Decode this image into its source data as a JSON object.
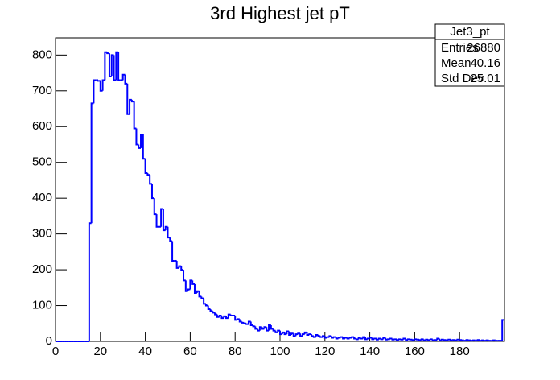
{
  "chart_data": {
    "type": "histogram",
    "title": "3rd Highest jet pT",
    "color": "#0000ff",
    "bins": [
      0,
      1,
      2,
      3,
      4,
      5,
      6,
      7,
      8,
      9,
      10,
      11,
      12,
      13,
      14,
      15,
      16,
      17,
      18,
      19,
      20,
      21,
      22,
      23,
      24,
      25,
      26,
      27,
      28,
      29,
      30,
      31,
      32,
      33,
      34,
      35,
      36,
      37,
      38,
      39,
      40,
      41,
      42,
      43,
      44,
      45,
      46,
      47,
      48,
      49,
      50,
      51,
      52,
      53,
      54,
      55,
      56,
      57,
      58,
      59,
      60,
      61,
      62,
      63,
      64,
      65,
      66,
      67,
      68,
      69,
      70,
      71,
      72,
      73,
      74,
      75,
      76,
      77,
      78,
      79,
      80,
      81,
      82,
      83,
      84,
      85,
      86,
      87,
      88,
      89,
      90,
      91,
      92,
      93,
      94,
      95,
      96,
      97,
      98,
      99,
      100,
      101,
      102,
      103,
      104,
      105,
      106,
      107,
      108,
      109,
      110,
      111,
      112,
      113,
      114,
      115,
      116,
      117,
      118,
      119,
      120,
      121,
      122,
      123,
      124,
      125,
      126,
      127,
      128,
      129,
      130,
      131,
      132,
      133,
      134,
      135,
      136,
      137,
      138,
      139,
      140,
      141,
      142,
      143,
      144,
      145,
      146,
      147,
      148,
      149,
      150,
      151,
      152,
      153,
      154,
      155,
      156,
      157,
      158,
      159,
      160,
      161,
      162,
      163,
      164,
      165,
      166,
      167,
      168,
      169,
      170,
      171,
      172,
      173,
      174,
      175,
      176,
      177,
      178,
      179,
      180,
      181,
      182,
      183,
      184,
      185,
      186,
      187,
      188,
      189,
      190,
      191,
      192,
      193,
      194,
      195,
      196,
      197,
      198,
      199,
      200
    ],
    "values": [
      0,
      0,
      0,
      0,
      0,
      0,
      0,
      0,
      0,
      0,
      0,
      0,
      0,
      0,
      0,
      330,
      665,
      730,
      730,
      728,
      700,
      730,
      808,
      805,
      740,
      800,
      730,
      808,
      730,
      730,
      745,
      720,
      635,
      675,
      670,
      595,
      550,
      540,
      578,
      510,
      470,
      465,
      440,
      400,
      355,
      320,
      320,
      370,
      310,
      320,
      290,
      280,
      225,
      225,
      205,
      210,
      200,
      170,
      140,
      145,
      170,
      160,
      135,
      140,
      125,
      120,
      105,
      100,
      90,
      85,
      80,
      75,
      68,
      72,
      65,
      70,
      65,
      75,
      72,
      72,
      60,
      62,
      55,
      52,
      50,
      48,
      55,
      45,
      42,
      35,
      30,
      40,
      35,
      40,
      30,
      45,
      35,
      30,
      25,
      30,
      20,
      25,
      20,
      28,
      18,
      22,
      15,
      20,
      22,
      15,
      20,
      25,
      18,
      20,
      15,
      12,
      18,
      15,
      12,
      15,
      10,
      12,
      15,
      10,
      12,
      8,
      10,
      12,
      8,
      10,
      8,
      10,
      12,
      8,
      6,
      10,
      8,
      12,
      6,
      8,
      10,
      6,
      8,
      5,
      8,
      6,
      10,
      5,
      6,
      8,
      5,
      6,
      4,
      6,
      5,
      8,
      4,
      6,
      5,
      4,
      6,
      5,
      4,
      6,
      3,
      5,
      4,
      6,
      3,
      4,
      8,
      3,
      5,
      4,
      3,
      5,
      3,
      4,
      3,
      5,
      4,
      3,
      2,
      4,
      3,
      2,
      3,
      2,
      4,
      2,
      3,
      2,
      3,
      2,
      2,
      3,
      2,
      2,
      2,
      60
    ],
    "xlim": [
      0,
      200
    ],
    "xticks": [
      0,
      20,
      40,
      60,
      80,
      100,
      120,
      140,
      160,
      180
    ],
    "ylim": [
      0,
      848
    ],
    "yticks": [
      0,
      100,
      200,
      300,
      400,
      500,
      600,
      700,
      800
    ],
    "stats": {
      "title": "Jet3_pt",
      "labels": [
        "Entries",
        "Mean",
        "Std Dev"
      ],
      "values": [
        26880,
        40.16,
        25.01
      ]
    }
  }
}
